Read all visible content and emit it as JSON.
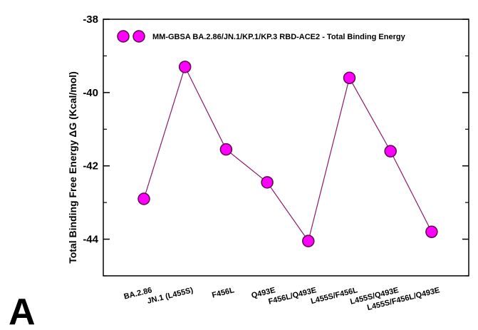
{
  "panel_label": "A",
  "chart_data": {
    "type": "line",
    "title": "",
    "xlabel": "",
    "ylabel": "Total Binding Free Energy   ΔG (Kcal/mol)",
    "categories": [
      "BA.2.86",
      "JN.1 (L455S)",
      "F456L",
      "Q493E",
      "F456L/Q493E",
      "L455S/F456L",
      "L455S/Q493E",
      "L455S/F456L/Q493E"
    ],
    "series": [
      {
        "name": "MM-GBSA BA.2.86/JN.1/KP.1/KP.3  RBD-ACE2  -  Total Binding Energy",
        "values": [
          -42.9,
          -39.3,
          -41.55,
          -42.45,
          -44.05,
          -39.6,
          -41.6,
          -43.8
        ],
        "marker_color": "#ff00ff",
        "line_color": "#8b1a6b"
      }
    ],
    "ylim": [
      -45,
      -38
    ],
    "yticks": [
      -38,
      -40,
      -42,
      -44
    ],
    "ytick_labels": [
      "-38",
      "-40",
      "-42",
      "-44"
    ],
    "grid": false,
    "legend_position": "top"
  }
}
